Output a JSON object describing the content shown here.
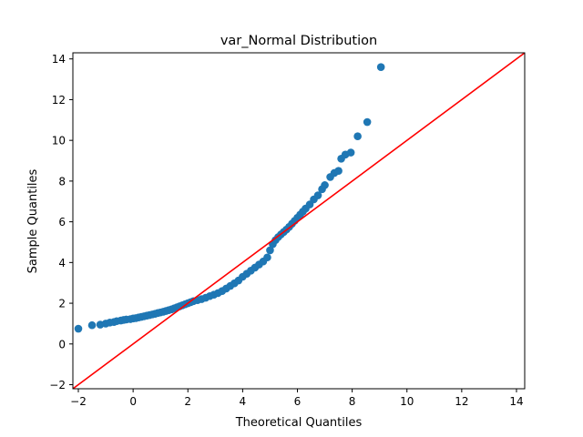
{
  "chart_data": {
    "type": "scatter",
    "title": "var_Normal Distribution",
    "xlabel": "Theoretical Quantiles",
    "ylabel": "Sample Quantiles",
    "xlim": [
      -2.2,
      14.3
    ],
    "ylim": [
      -2.2,
      14.3
    ],
    "xticks": [
      -2,
      0,
      2,
      4,
      6,
      8,
      10,
      12,
      14
    ],
    "yticks": [
      -2,
      0,
      2,
      4,
      6,
      8,
      10,
      12,
      14
    ],
    "tick_labels_x": [
      "−2",
      "0",
      "2",
      "4",
      "6",
      "8",
      "10",
      "12",
      "14"
    ],
    "tick_labels_y": [
      "−2",
      "0",
      "2",
      "4",
      "6",
      "8",
      "10",
      "12",
      "14"
    ],
    "grid": false,
    "legend": "none",
    "marker_color": "#1f77b4",
    "reference_line": {
      "color": "#ff0000",
      "points": [
        [
          -2.2,
          -2.2
        ],
        [
          14.3,
          14.3
        ]
      ]
    },
    "series": [
      {
        "points": [
          [
            -2.0,
            0.75
          ],
          [
            -1.5,
            0.92
          ],
          [
            -1.2,
            0.95
          ],
          [
            -1.0,
            1.0
          ],
          [
            -0.85,
            1.05
          ],
          [
            -0.7,
            1.08
          ],
          [
            -0.6,
            1.12
          ],
          [
            -0.45,
            1.15
          ],
          [
            -0.35,
            1.18
          ],
          [
            -0.25,
            1.2
          ],
          [
            -0.1,
            1.22
          ],
          [
            0.0,
            1.25
          ],
          [
            0.1,
            1.27
          ],
          [
            0.2,
            1.3
          ],
          [
            0.3,
            1.33
          ],
          [
            0.4,
            1.36
          ],
          [
            0.5,
            1.39
          ],
          [
            0.6,
            1.42
          ],
          [
            0.7,
            1.45
          ],
          [
            0.8,
            1.48
          ],
          [
            0.9,
            1.52
          ],
          [
            1.0,
            1.55
          ],
          [
            1.1,
            1.58
          ],
          [
            1.2,
            1.62
          ],
          [
            1.3,
            1.66
          ],
          [
            1.4,
            1.7
          ],
          [
            1.5,
            1.75
          ],
          [
            1.6,
            1.8
          ],
          [
            1.7,
            1.85
          ],
          [
            1.8,
            1.9
          ],
          [
            1.9,
            1.95
          ],
          [
            2.0,
            2.0
          ],
          [
            2.1,
            2.05
          ],
          [
            2.2,
            2.1
          ],
          [
            2.35,
            2.15
          ],
          [
            2.5,
            2.2
          ],
          [
            2.65,
            2.27
          ],
          [
            2.8,
            2.35
          ],
          [
            2.95,
            2.42
          ],
          [
            3.1,
            2.5
          ],
          [
            3.25,
            2.6
          ],
          [
            3.4,
            2.72
          ],
          [
            3.55,
            2.85
          ],
          [
            3.7,
            2.98
          ],
          [
            3.85,
            3.12
          ],
          [
            4.0,
            3.3
          ],
          [
            4.15,
            3.45
          ],
          [
            4.3,
            3.6
          ],
          [
            4.45,
            3.75
          ],
          [
            4.6,
            3.9
          ],
          [
            4.75,
            4.05
          ],
          [
            4.9,
            4.25
          ],
          [
            5.0,
            4.6
          ],
          [
            5.1,
            4.9
          ],
          [
            5.2,
            5.1
          ],
          [
            5.3,
            5.25
          ],
          [
            5.4,
            5.38
          ],
          [
            5.5,
            5.5
          ],
          [
            5.6,
            5.62
          ],
          [
            5.7,
            5.75
          ],
          [
            5.8,
            5.9
          ],
          [
            5.9,
            6.05
          ],
          [
            6.0,
            6.2
          ],
          [
            6.1,
            6.35
          ],
          [
            6.2,
            6.5
          ],
          [
            6.3,
            6.65
          ],
          [
            6.45,
            6.85
          ],
          [
            6.6,
            7.1
          ],
          [
            6.75,
            7.3
          ],
          [
            6.9,
            7.6
          ],
          [
            7.0,
            7.8
          ],
          [
            7.2,
            8.2
          ],
          [
            7.35,
            8.4
          ],
          [
            7.5,
            8.5
          ],
          [
            7.6,
            9.1
          ],
          [
            7.75,
            9.3
          ],
          [
            7.95,
            9.4
          ],
          [
            8.2,
            10.2
          ],
          [
            8.55,
            10.9
          ],
          [
            9.05,
            13.6
          ]
        ]
      }
    ]
  }
}
